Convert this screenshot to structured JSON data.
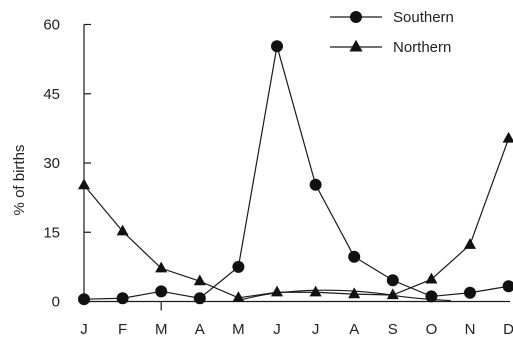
{
  "chart_data": {
    "type": "line",
    "title": "",
    "xlabel": "",
    "ylabel": "% of births",
    "categories": [
      "J",
      "F",
      "M",
      "A",
      "M",
      "J",
      "J",
      "A",
      "S",
      "O",
      "N",
      "D"
    ],
    "ylim": [
      0,
      60
    ],
    "yticks": [
      "0",
      "15",
      "30",
      "45",
      "60"
    ],
    "grid": false,
    "legend_position": "top-right",
    "series": [
      {
        "name": "Southern",
        "marker": "circle",
        "values": [
          0.5,
          0.7,
          2.2,
          0.7,
          7.5,
          55.3,
          25.3,
          9.7,
          4.6,
          1.1,
          1.9,
          3.3
        ]
      },
      {
        "name": "Northern",
        "marker": "triangle",
        "values": [
          25.2,
          15.2,
          7.2,
          4.4,
          0.8,
          2.0,
          2.0,
          1.6,
          1.4,
          4.8,
          12.3,
          35.3
        ]
      }
    ],
    "colors": {
      "line": "#1a1a1a",
      "marker": "#111111",
      "text": "#222222"
    }
  }
}
